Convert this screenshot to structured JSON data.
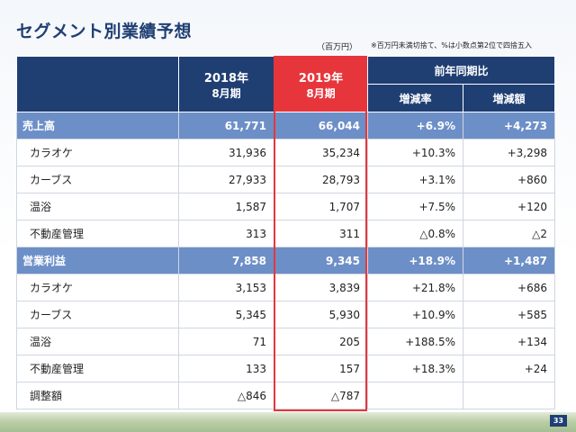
{
  "title": "セグメント別業績予想",
  "unit": "（百万円）",
  "note": "※百万円未満切捨て、%は小数点第2位で四捨五入",
  "header": {
    "col2018_year": "2018年",
    "col2018_month": "8月期",
    "col2019_year": "2019年",
    "col2019_month": "8月期",
    "yoy": "前年同期比",
    "rate": "増減率",
    "amount": "増減額"
  },
  "rows": [
    {
      "label": "売上高",
      "v2018": "61,771",
      "v2019": "66,044",
      "rate": "+6.9%",
      "amount": "+4,273"
    },
    {
      "label": "カラオケ",
      "v2018": "31,936",
      "v2019": "35,234",
      "rate": "+10.3%",
      "amount": "+3,298"
    },
    {
      "label": "カーブス",
      "v2018": "27,933",
      "v2019": "28,793",
      "rate": "+3.1%",
      "amount": "+860"
    },
    {
      "label": "温浴",
      "v2018": "1,587",
      "v2019": "1,707",
      "rate": "+7.5%",
      "amount": "+120"
    },
    {
      "label": "不動産管理",
      "v2018": "313",
      "v2019": "311",
      "rate": "△0.8%",
      "amount": "△2"
    },
    {
      "label": "営業利益",
      "v2018": "7,858",
      "v2019": "9,345",
      "rate": "+18.9%",
      "amount": "+1,487"
    },
    {
      "label": "カラオケ",
      "v2018": "3,153",
      "v2019": "3,839",
      "rate": "+21.8%",
      "amount": "+686"
    },
    {
      "label": "カーブス",
      "v2018": "5,345",
      "v2019": "5,930",
      "rate": "+10.9%",
      "amount": "+585"
    },
    {
      "label": "温浴",
      "v2018": "71",
      "v2019": "205",
      "rate": "+188.5%",
      "amount": "+134"
    },
    {
      "label": "不動産管理",
      "v2018": "133",
      "v2019": "157",
      "rate": "+18.3%",
      "amount": "+24"
    },
    {
      "label": "調整額",
      "v2018": "△846",
      "v2019": "△787",
      "rate": "",
      "amount": ""
    }
  ],
  "page_number": "33",
  "colors": {
    "header": "#1f3f73",
    "highlight": "#e6363c",
    "section": "#6d8fc8"
  }
}
